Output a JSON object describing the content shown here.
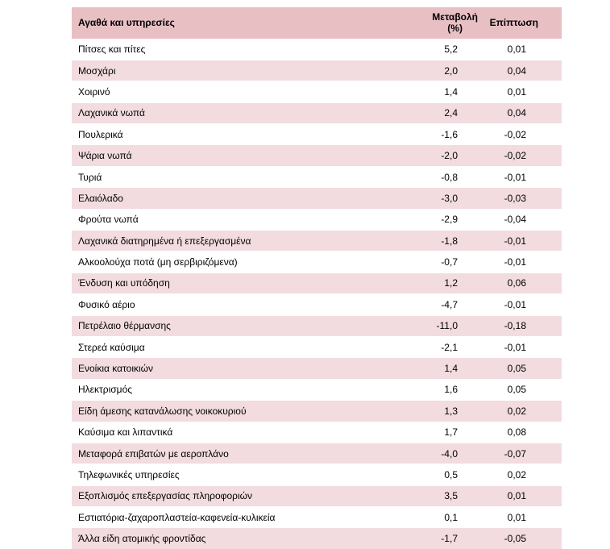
{
  "table": {
    "headers": {
      "name": "Αγαθά και υπηρεσίες",
      "change_line1": "Μεταβολή",
      "change_line2": "(%)",
      "impact": "Επίπτωση"
    },
    "rows": [
      {
        "name": "Πίτσες και πίτες",
        "change": "5,2",
        "impact": "0,01"
      },
      {
        "name": "Μοσχάρι",
        "change": "2,0",
        "impact": "0,04"
      },
      {
        "name": "Χοιρινό",
        "change": "1,4",
        "impact": "0,01"
      },
      {
        "name": "Λαχανικά νωπά",
        "change": "2,4",
        "impact": "0,04"
      },
      {
        "name": "Πουλερικά",
        "change": "-1,6",
        "impact": "-0,02"
      },
      {
        "name": "Ψάρια νωπά",
        "change": "-2,0",
        "impact": "-0,02"
      },
      {
        "name": "Τυριά",
        "change": "-0,8",
        "impact": "-0,01"
      },
      {
        "name": "Ελαιόλαδο",
        "change": "-3,0",
        "impact": "-0,03"
      },
      {
        "name": "Φρούτα νωπά",
        "change": "-2,9",
        "impact": "-0,04"
      },
      {
        "name": "Λαχανικά διατηρημένα ή επεξεργασμένα",
        "change": "-1,8",
        "impact": "-0,01"
      },
      {
        "name": "Αλκοολούχα ποτά (μη σερβιριζόμενα)",
        "change": "-0,7",
        "impact": "-0,01"
      },
      {
        "name": "Ένδυση και υπόδηση",
        "change": "1,2",
        "impact": "0,06"
      },
      {
        "name": "Φυσικό αέριο",
        "change": "-4,7",
        "impact": "-0,01"
      },
      {
        "name": "Πετρέλαιο θέρμανσης",
        "change": "-11,0",
        "impact": "-0,18"
      },
      {
        "name": "Στερεά καύσιμα",
        "change": "-2,1",
        "impact": "-0,01"
      },
      {
        "name": "Ενοίκια κατοικιών",
        "change": "1,4",
        "impact": "0,05"
      },
      {
        "name": "Ηλεκτρισμός",
        "change": "1,6",
        "impact": "0,05"
      },
      {
        "name": "Είδη άμεσης κατανάλωσης νοικοκυριού",
        "change": "1,3",
        "impact": "0,02"
      },
      {
        "name": "Καύσιμα και λιπαντικά",
        "change": "1,7",
        "impact": "0,08"
      },
      {
        "name": "Μεταφορά επιβατών με αεροπλάνο",
        "change": "-4,0",
        "impact": "-0,07"
      },
      {
        "name": "Τηλεφωνικές υπηρεσίες",
        "change": "0,5",
        "impact": "0,02"
      },
      {
        "name": "Εξοπλισμός επεξεργασίας πληροφοριών",
        "change": "3,5",
        "impact": "0,01"
      },
      {
        "name": "Εστιατόρια-ζαχαροπλαστεία-καφενεία-κυλικεία",
        "change": "0,1",
        "impact": "0,01"
      },
      {
        "name": "Άλλα είδη ατομικής φροντίδας",
        "change": "-1,7",
        "impact": "-0,05"
      }
    ]
  },
  "colors": {
    "header_bg": "#e8c0c4",
    "stripe_bg": "#f2dcdf"
  }
}
